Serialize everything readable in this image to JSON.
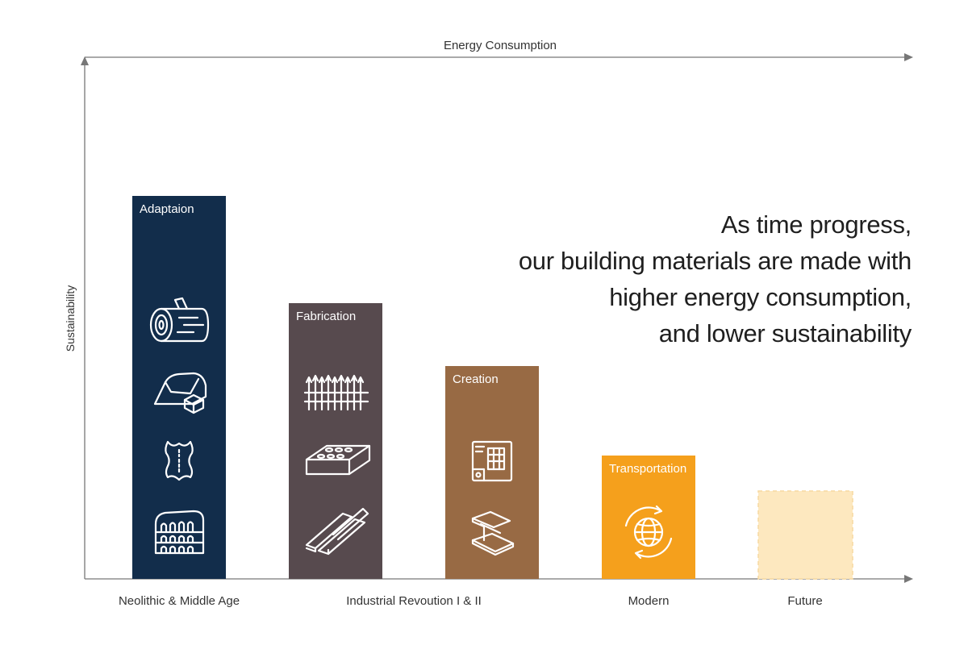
{
  "axes": {
    "x_title": "Energy Consumption",
    "y_title": "Sustainability"
  },
  "eras": [
    {
      "label": "Neolithic & Middle Age"
    },
    {
      "label": "Industrial Revoution I & II"
    },
    {
      "label": "Modern"
    },
    {
      "label": "Future"
    }
  ],
  "bars": [
    {
      "label": "Adaptaion",
      "color": "#122d4b",
      "icons": [
        "log-icon",
        "stone-icon",
        "leather-hide-icon",
        "colosseum-icon"
      ]
    },
    {
      "label": "Fabrication",
      "color": "#574a4e",
      "icons": [
        "iron-fence-icon",
        "brick-icon",
        "lumber-beams-icon"
      ]
    },
    {
      "label": "Creation",
      "color": "#986a44",
      "icons": [
        "blueprint-icon",
        "steel-i-beam-icon"
      ]
    },
    {
      "label": "Transportation",
      "color": "#f5a01c",
      "icons": [
        "globe-icon"
      ]
    },
    {
      "label": "",
      "color": "#fde8bf",
      "icons": []
    }
  ],
  "headline": {
    "lines": [
      "As time progress,",
      "our building materials are made with",
      "higher energy consumption,",
      "and lower sustainability"
    ]
  }
}
